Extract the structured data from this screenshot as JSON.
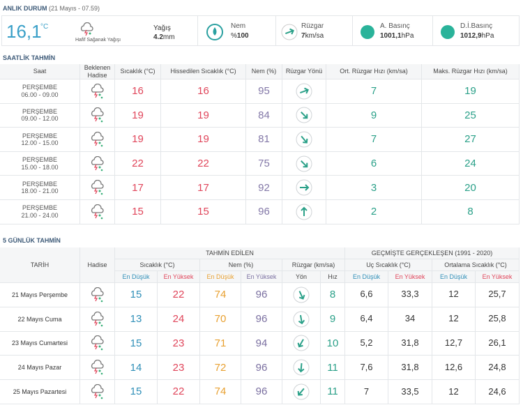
{
  "current": {
    "title": "ANLIK DURUM",
    "time": "(21 Mayıs - 07.59)",
    "temperature": "16,1",
    "temp_unit": "°C",
    "condition": "Hafif Sağanak Yağışı",
    "precip_label": "Yağış",
    "precip_value": "4.2",
    "precip_unit": "mm",
    "humidity_label": "Nem",
    "humidity_prefix": "%",
    "humidity_value": 100,
    "wind_label": "Rüzgar",
    "wind_value": 7,
    "wind_unit": "km/sa",
    "pressure_label": "A. Basınç",
    "pressure_value": "1001,1",
    "pressure_unit": "hPa",
    "sea_pressure_label": "D.İ.Basınç",
    "sea_pressure_value": "1012,9",
    "sea_pressure_unit": "hPa"
  },
  "hourly": {
    "title": "SAATLİK TAHMİN",
    "columns": [
      "Saat",
      "Beklenen Hadise",
      "Sıcaklık (°C)",
      "Hissedilen Sıcaklık (°C)",
      "Nem (%)",
      "Rüzgar Yönü",
      "Ort. Rüzgar Hızı (km/sa)",
      "Maks. Rüzgar Hızı (km/sa)"
    ],
    "rows": [
      {
        "day": "PERŞEMBE",
        "time": "06.00 - 09.00",
        "temp": 16,
        "feels": 16,
        "humidity": 95,
        "wind_avg": 7,
        "wind_max": 19
      },
      {
        "day": "PERŞEMBE",
        "time": "09.00 - 12.00",
        "temp": 19,
        "feels": 19,
        "humidity": 84,
        "wind_avg": 9,
        "wind_max": 25
      },
      {
        "day": "PERŞEMBE",
        "time": "12.00 - 15.00",
        "temp": 19,
        "feels": 19,
        "humidity": 81,
        "wind_avg": 7,
        "wind_max": 27
      },
      {
        "day": "PERŞEMBE",
        "time": "15.00 - 18.00",
        "temp": 22,
        "feels": 22,
        "humidity": 75,
        "wind_avg": 6,
        "wind_max": 24
      },
      {
        "day": "PERŞEMBE",
        "time": "18.00 - 21.00",
        "temp": 17,
        "feels": 17,
        "humidity": 92,
        "wind_avg": 3,
        "wind_max": 20
      },
      {
        "day": "PERŞEMBE",
        "time": "21.00 - 24.00",
        "temp": 15,
        "feels": 15,
        "humidity": 96,
        "wind_avg": 2,
        "wind_max": 8
      }
    ]
  },
  "daily": {
    "title": "5 GÜNLÜK TAHMİN",
    "headers": {
      "date": "TARİH",
      "event": "Hadise",
      "forecast": "TAHMİN EDİLEN",
      "past": "GEÇMİŞTE GERÇEKLEŞEN (1991 - 2020)",
      "temp": "Sıcaklık (°C)",
      "humidity": "Nem (%)",
      "wind": "Rüzgar (km/sa)",
      "extreme": "Uç Sıcaklık (°C)",
      "average": "Ortalama Sıcaklık (°C)",
      "sub": [
        "En Düşük",
        "En Yüksek",
        "En Düşük",
        "En Yüksek",
        "Yön",
        "Hız",
        "En Düşük",
        "En Yüksek",
        "En Düşük",
        "En Yüksek"
      ]
    },
    "rows": [
      {
        "date": "21 Mayıs Perşembe",
        "temp_min": 15,
        "temp_max": 22,
        "hum_min": 74,
        "hum_max": 96,
        "wind": 8,
        "ext_min": "6,6",
        "ext_max": "33,3",
        "avg_min": 12,
        "avg_max": "25,7"
      },
      {
        "date": "22 Mayıs Cuma",
        "temp_min": 13,
        "temp_max": 24,
        "hum_min": 70,
        "hum_max": 96,
        "wind": 9,
        "ext_min": "6,4",
        "ext_max": 34,
        "avg_min": 12,
        "avg_max": "25,8"
      },
      {
        "date": "23 Mayıs Cumartesi",
        "temp_min": 15,
        "temp_max": 23,
        "hum_min": 71,
        "hum_max": 94,
        "wind": 10,
        "ext_min": "5,2",
        "ext_max": "31,8",
        "avg_min": "12,7",
        "avg_max": "26,1"
      },
      {
        "date": "24 Mayıs Pazar",
        "temp_min": 14,
        "temp_max": 23,
        "hum_min": 72,
        "hum_max": 96,
        "wind": 11,
        "ext_min": "7,6",
        "ext_max": "31,8",
        "avg_min": "12,6",
        "avg_max": "24,8"
      },
      {
        "date": "25 Mayıs Pazartesi",
        "temp_min": 15,
        "temp_max": 22,
        "hum_min": 74,
        "hum_max": 96,
        "wind": 11,
        "ext_min": 7,
        "ext_max": "33,5",
        "avg_min": 12,
        "avg_max": "24,6"
      }
    ]
  }
}
